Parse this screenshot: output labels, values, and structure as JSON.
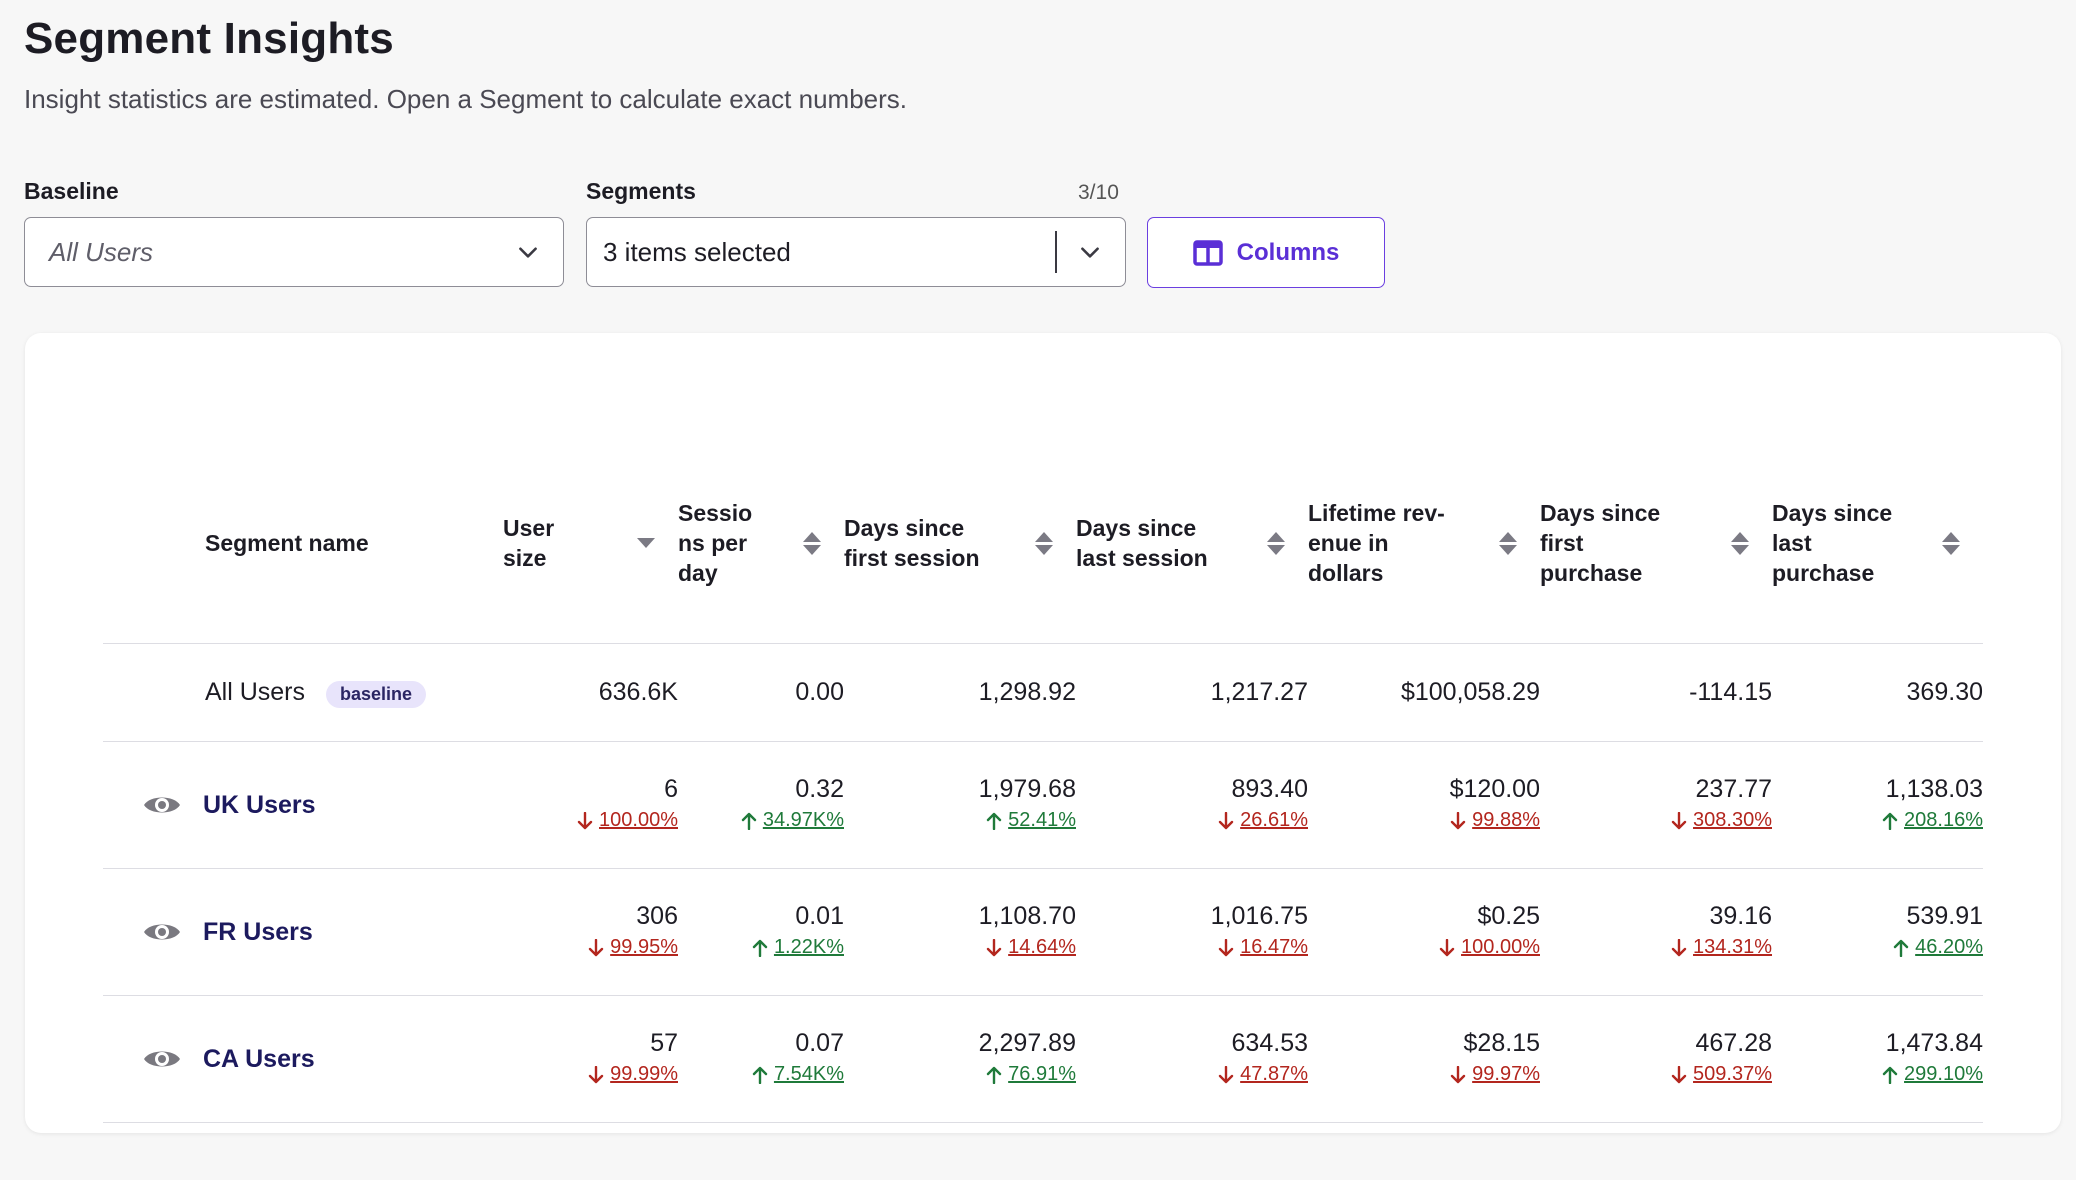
{
  "header": {
    "title": "Segment Insights",
    "subtitle": "Insight statistics are estimated. Open a Segment to calculate exact numbers."
  },
  "filters": {
    "baseline_label": "Baseline",
    "baseline_value": "All Users",
    "segments_label": "Segments",
    "segments_count": "3/10",
    "segments_value": "3 items selected",
    "columns_button": "Columns"
  },
  "table": {
    "columns": [
      "Segment name",
      "User size",
      "Sessio ns per day",
      "Days since first session",
      "Days since last session",
      "Lifetime rev-enue in dollars",
      "Days since first purchase",
      "Days since last purchase"
    ],
    "baseline_row": {
      "name": "All Users",
      "badge": "baseline",
      "values": [
        "636.6K",
        "0.00",
        "1,298.92",
        "1,217.27",
        "$100,058.29",
        "-114.15",
        "369.30"
      ]
    },
    "rows": [
      {
        "name": "UK Users",
        "values": [
          "6",
          "0.32",
          "1,979.68",
          "893.40",
          "$120.00",
          "237.77",
          "1,138.03"
        ],
        "deltas": [
          {
            "dir": "down",
            "text": "100.00%"
          },
          {
            "dir": "up",
            "text": "34.97K%"
          },
          {
            "dir": "up",
            "text": "52.41%"
          },
          {
            "dir": "down",
            "text": "26.61%"
          },
          {
            "dir": "down",
            "text": "99.88%"
          },
          {
            "dir": "down",
            "text": "308.30%"
          },
          {
            "dir": "up",
            "text": "208.16%"
          }
        ]
      },
      {
        "name": "FR Users",
        "values": [
          "306",
          "0.01",
          "1,108.70",
          "1,016.75",
          "$0.25",
          "39.16",
          "539.91"
        ],
        "deltas": [
          {
            "dir": "down",
            "text": "99.95%"
          },
          {
            "dir": "up",
            "text": "1.22K%"
          },
          {
            "dir": "down",
            "text": "14.64%"
          },
          {
            "dir": "down",
            "text": "16.47%"
          },
          {
            "dir": "down",
            "text": "100.00%"
          },
          {
            "dir": "down",
            "text": "134.31%"
          },
          {
            "dir": "up",
            "text": "46.20%"
          }
        ]
      },
      {
        "name": "CA Users",
        "values": [
          "57",
          "0.07",
          "2,297.89",
          "634.53",
          "$28.15",
          "467.28",
          "1,473.84"
        ],
        "deltas": [
          {
            "dir": "down",
            "text": "99.99%"
          },
          {
            "dir": "up",
            "text": "7.54K%"
          },
          {
            "dir": "up",
            "text": "76.91%"
          },
          {
            "dir": "down",
            "text": "47.87%"
          },
          {
            "dir": "down",
            "text": "99.97%"
          },
          {
            "dir": "down",
            "text": "509.37%"
          },
          {
            "dir": "up",
            "text": "299.10%"
          }
        ]
      }
    ]
  },
  "colors": {
    "accent": "#5a2fd6",
    "down": "#b3261e",
    "up": "#1f7a3a",
    "badge_bg": "#e8e4fb"
  }
}
